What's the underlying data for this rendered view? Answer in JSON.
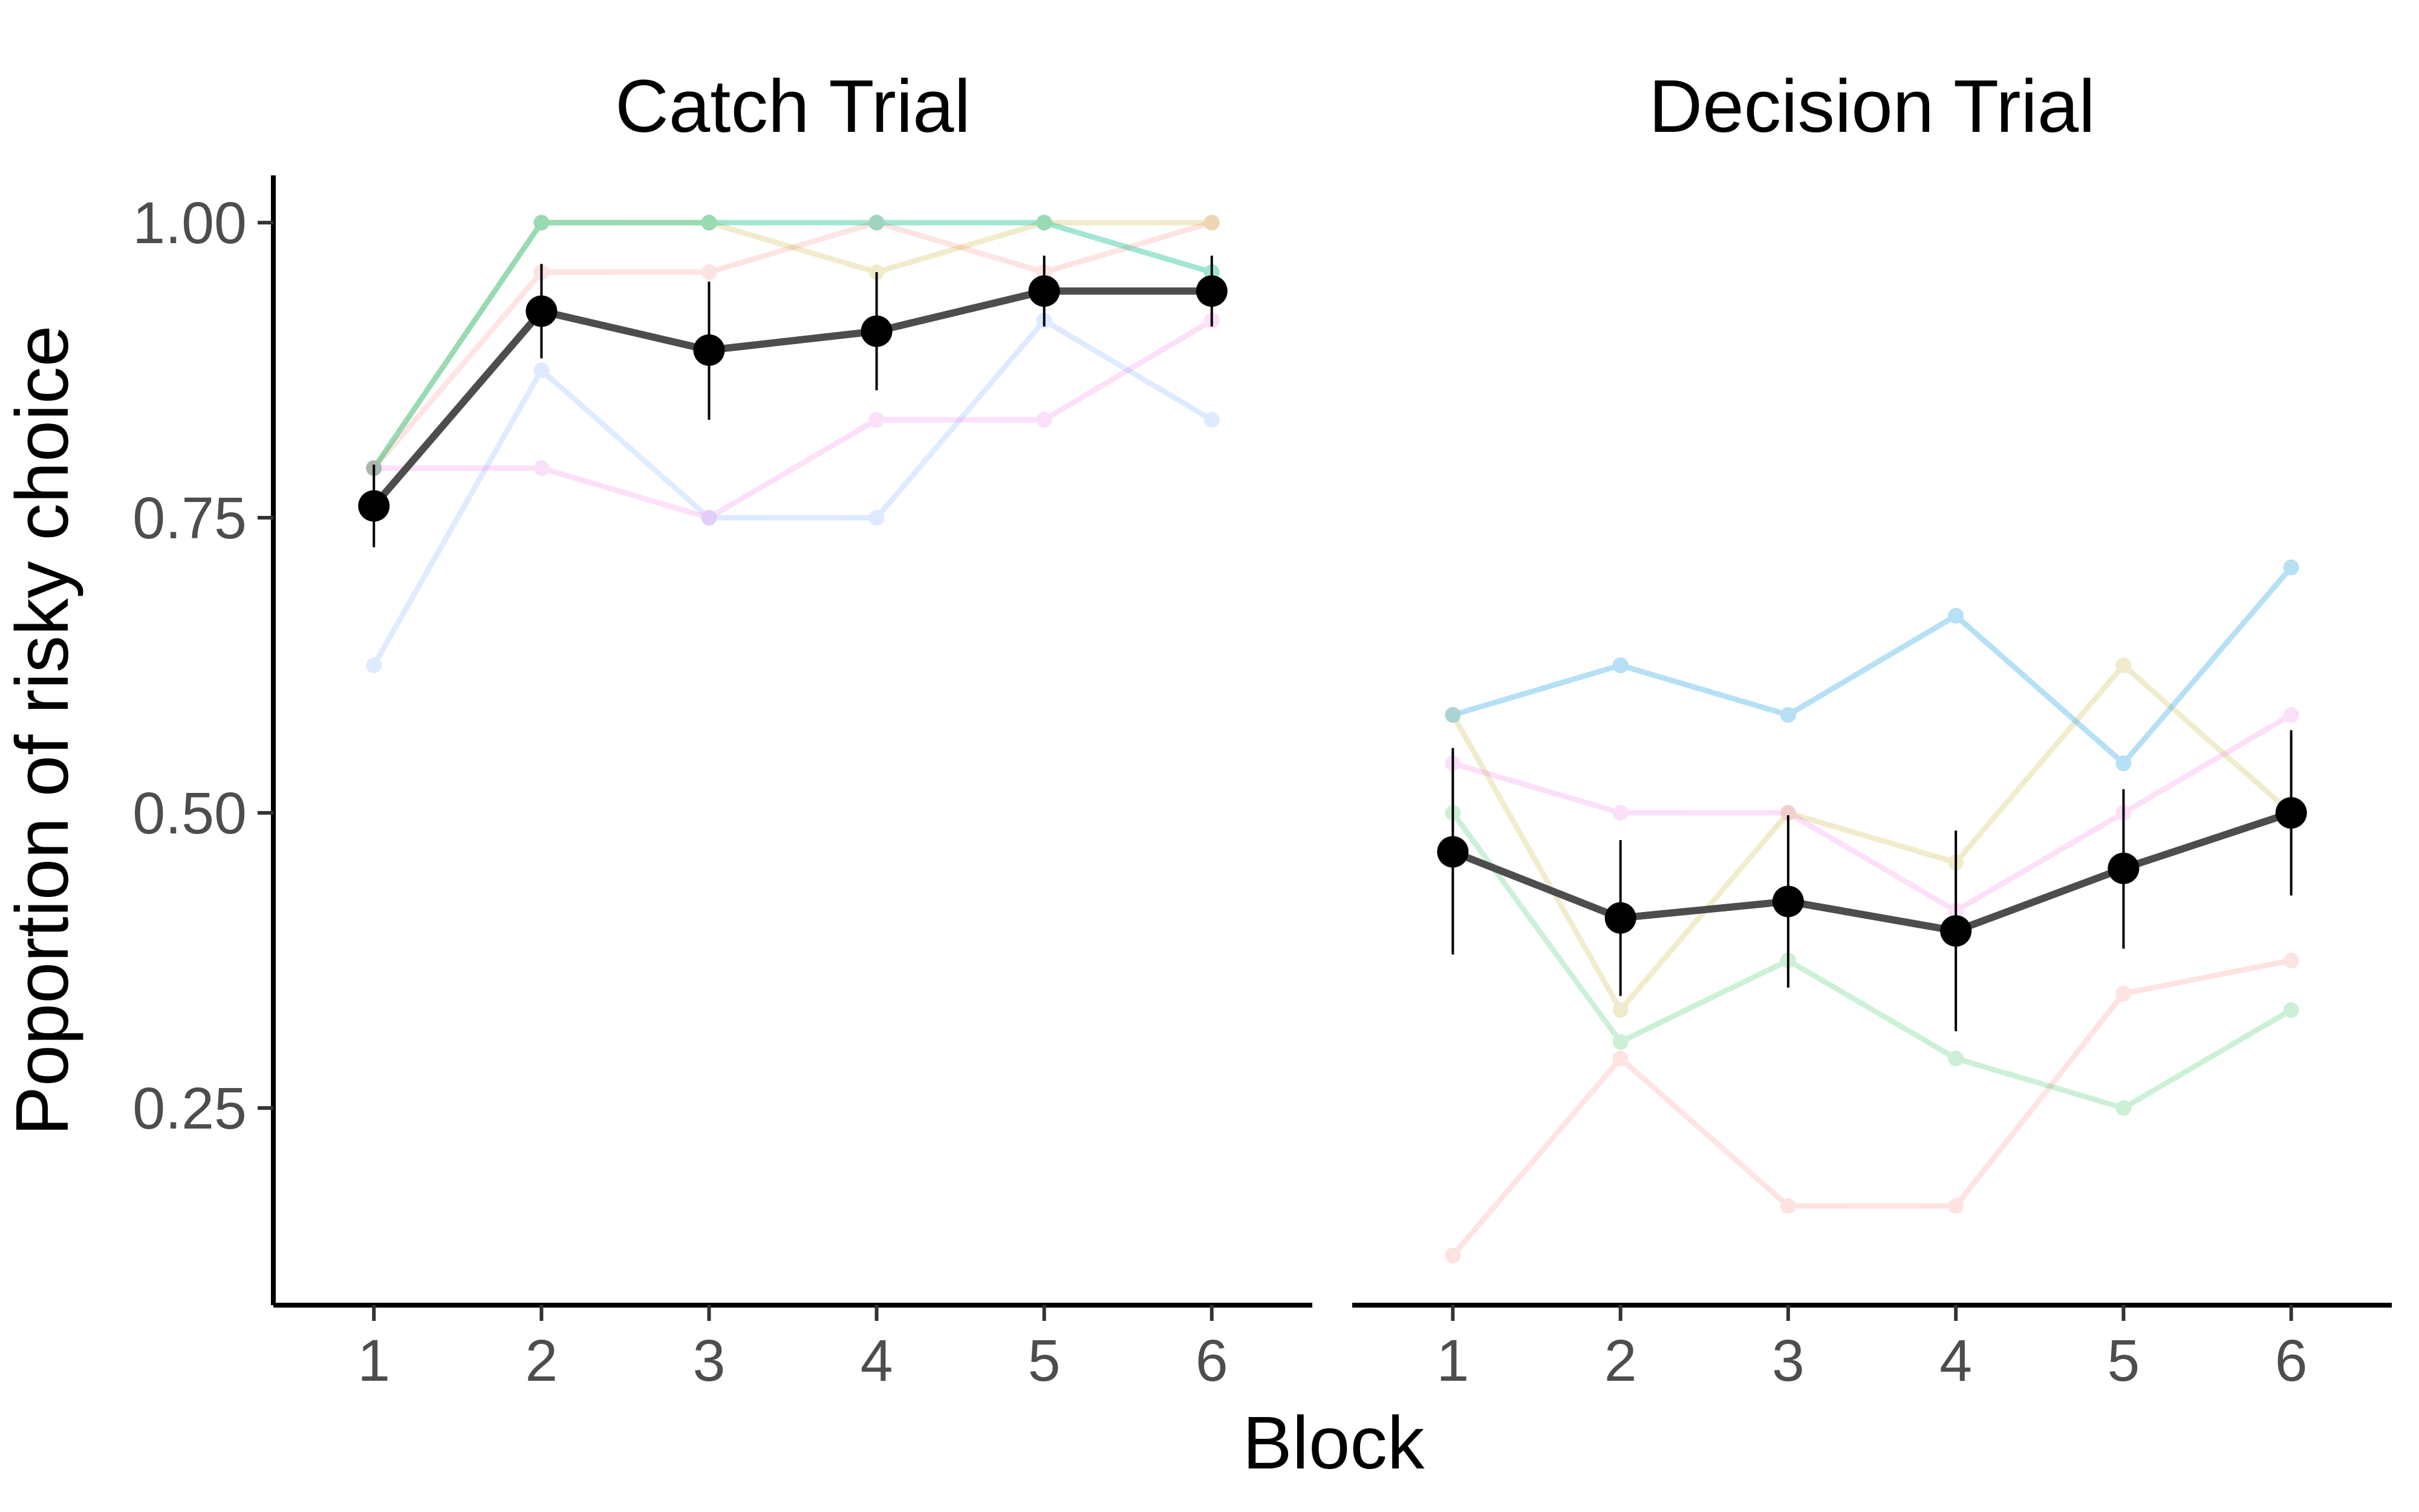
{
  "chart_data": {
    "type": "line",
    "ylabel": "Poportion of risky choice",
    "xlabel": "Block",
    "x": [
      1,
      2,
      3,
      4,
      5,
      6
    ],
    "x_tick_labels": [
      "1",
      "2",
      "3",
      "4",
      "5",
      "6"
    ],
    "y_ticks": [
      0.25,
      0.5,
      0.75,
      1.0
    ],
    "y_tick_labels": [
      "0.25",
      "0.50",
      "0.75",
      "1.00"
    ],
    "ylim": [
      0.083,
      1.04
    ],
    "xlim": [
      0.4,
      6.6
    ],
    "facets": [
      {
        "title": "Catch Trial",
        "mean": {
          "color": "#4d4d4d",
          "values": [
            0.76,
            0.925,
            0.892,
            0.908,
            0.942,
            0.942
          ],
          "error_low": [
            0.725,
            0.885,
            0.833,
            0.858,
            0.912,
            0.912
          ],
          "error_high": [
            0.795,
            0.965,
            0.95,
            0.958,
            0.972,
            0.972
          ]
        },
        "subjects": [
          {
            "color": "#f8766d",
            "values": [
              0.792,
              0.958,
              0.958,
              1.0,
              0.958,
              1.0
            ]
          },
          {
            "color": "#b79f00",
            "values": [
              0.792,
              1.0,
              1.0,
              0.958,
              1.0,
              1.0
            ]
          },
          {
            "color": "#00ba38",
            "values": [
              0.792,
              1.0,
              1.0,
              1.0,
              1.0,
              0.958
            ]
          },
          {
            "color": "#00bfc4",
            "values": [
              0.792,
              1.0,
              1.0,
              1.0,
              1.0,
              0.958
            ]
          },
          {
            "color": "#619cff",
            "values": [
              0.625,
              0.875,
              0.75,
              0.75,
              0.917,
              0.833
            ]
          },
          {
            "color": "#f564e3",
            "values": [
              0.792,
              0.792,
              0.75,
              0.833,
              0.833,
              0.917
            ]
          }
        ]
      },
      {
        "title": "Decision Trial",
        "mean": {
          "color": "#4d4d4d",
          "values": [
            0.467,
            0.411,
            0.425,
            0.4,
            0.453,
            0.5
          ],
          "error_low": [
            0.38,
            0.345,
            0.352,
            0.315,
            0.385,
            0.43
          ],
          "error_high": [
            0.555,
            0.477,
            0.498,
            0.485,
            0.52,
            0.57
          ]
        },
        "subjects": [
          {
            "color": "#f8766d",
            "values": [
              0.125,
              0.292,
              0.167,
              0.167,
              0.347,
              0.375
            ]
          },
          {
            "color": "#b79f00",
            "values": [
              0.583,
              0.333,
              0.5,
              0.458,
              0.625,
              0.5
            ]
          },
          {
            "color": "#00ba38",
            "values": [
              0.5,
              0.306,
              0.375,
              0.292,
              0.25,
              0.333
            ]
          },
          {
            "color": "#00bfc4",
            "values": [
              0.583,
              0.625,
              0.583,
              0.667,
              0.542,
              0.708
            ]
          },
          {
            "color": "#619cff",
            "values": [
              0.583,
              0.625,
              0.583,
              0.667,
              0.542,
              0.708
            ]
          },
          {
            "color": "#f564e3",
            "values": [
              0.542,
              0.5,
              0.5,
              0.417,
              0.5,
              0.583
            ]
          }
        ]
      }
    ],
    "grid": false,
    "legend": "none"
  }
}
